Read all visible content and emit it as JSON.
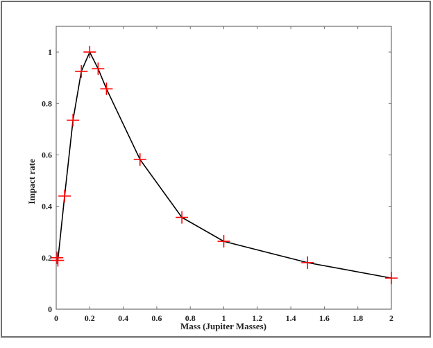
{
  "chart_data": {
    "type": "line",
    "title": "",
    "xlabel": "Mass (Jupiter Masses)",
    "ylabel": "Impact rate",
    "xlim": [
      0,
      2
    ],
    "ylim": [
      0,
      1.1
    ],
    "grid": false,
    "legend": null,
    "x_ticks": [
      "0",
      "0.2",
      "0.4",
      "0.6",
      "0.8",
      "1",
      "1.2",
      "1.4",
      "1.6",
      "1.8",
      "2"
    ],
    "y_ticks": [
      "0",
      "0.2",
      "0.4",
      "0.6",
      "0.8",
      "1"
    ],
    "series": [
      {
        "name": "Impact rate",
        "line_color": "#000000",
        "marker": "+",
        "marker_color": "#ff0000",
        "x": [
          0.005,
          0.01,
          0.05,
          0.1,
          0.15,
          0.2,
          0.25,
          0.3,
          0.5,
          0.75,
          1.0,
          1.5,
          2.0
        ],
        "y": [
          0.2,
          0.19,
          0.44,
          0.735,
          0.925,
          1.0,
          0.935,
          0.857,
          0.582,
          0.357,
          0.264,
          0.181,
          0.121
        ]
      }
    ]
  }
}
